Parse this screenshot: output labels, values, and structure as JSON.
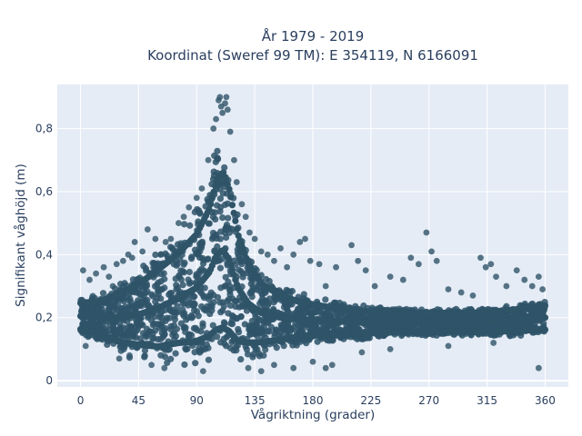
{
  "chart_data": {
    "type": "scatter",
    "title": "År 1979 - 2019",
    "subtitle": "Koordinat (Sweref 99 TM): E 354119, N 6166091",
    "xlabel": "Vågriktning (grader)",
    "ylabel": "Signifikant våghöjd (m)",
    "xlim": [
      -18,
      378
    ],
    "ylim": [
      -0.02,
      0.94
    ],
    "x_ticks": [
      0,
      45,
      90,
      135,
      180,
      225,
      270,
      315,
      360
    ],
    "x_tick_labels": [
      "0",
      "45",
      "90",
      "135",
      "180",
      "225",
      "270",
      "315",
      "360"
    ],
    "y_ticks": [
      0,
      0.2,
      0.4,
      0.6,
      0.8
    ],
    "y_tick_labels": [
      "0",
      "0,2",
      "0,4",
      "0,6",
      "0,8"
    ],
    "grid": true,
    "marker_color": "#2f5468",
    "background_color": "#e5ecf6",
    "band_profile": [
      {
        "x": 0,
        "low": 0.14,
        "high": 0.27
      },
      {
        "x": 15,
        "low": 0.12,
        "high": 0.28
      },
      {
        "x": 30,
        "low": 0.08,
        "high": 0.32
      },
      {
        "x": 45,
        "low": 0.06,
        "high": 0.36
      },
      {
        "x": 60,
        "low": 0.04,
        "high": 0.42
      },
      {
        "x": 75,
        "low": 0.04,
        "high": 0.48
      },
      {
        "x": 90,
        "low": 0.03,
        "high": 0.56
      },
      {
        "x": 100,
        "low": 0.03,
        "high": 0.66
      },
      {
        "x": 105,
        "low": 0.03,
        "high": 0.76
      },
      {
        "x": 110,
        "low": 0.03,
        "high": 0.8
      },
      {
        "x": 115,
        "low": 0.03,
        "high": 0.74
      },
      {
        "x": 122,
        "low": 0.03,
        "high": 0.56
      },
      {
        "x": 130,
        "low": 0.05,
        "high": 0.44
      },
      {
        "x": 140,
        "low": 0.07,
        "high": 0.36
      },
      {
        "x": 155,
        "low": 0.09,
        "high": 0.31
      },
      {
        "x": 170,
        "low": 0.11,
        "high": 0.28
      },
      {
        "x": 190,
        "low": 0.12,
        "high": 0.26
      },
      {
        "x": 220,
        "low": 0.13,
        "high": 0.24
      },
      {
        "x": 260,
        "low": 0.14,
        "high": 0.23
      },
      {
        "x": 300,
        "low": 0.14,
        "high": 0.23
      },
      {
        "x": 330,
        "low": 0.14,
        "high": 0.24
      },
      {
        "x": 360,
        "low": 0.14,
        "high": 0.26
      }
    ],
    "outliers": [
      {
        "x": 2,
        "y": 0.35
      },
      {
        "x": 7,
        "y": 0.32
      },
      {
        "x": 12,
        "y": 0.34
      },
      {
        "x": 18,
        "y": 0.36
      },
      {
        "x": 22,
        "y": 0.33
      },
      {
        "x": 25,
        "y": 0.3
      },
      {
        "x": 28,
        "y": 0.37
      },
      {
        "x": 33,
        "y": 0.38
      },
      {
        "x": 37,
        "y": 0.4
      },
      {
        "x": 40,
        "y": 0.39
      },
      {
        "x": 42,
        "y": 0.44
      },
      {
        "x": 48,
        "y": 0.41
      },
      {
        "x": 52,
        "y": 0.48
      },
      {
        "x": 58,
        "y": 0.45
      },
      {
        "x": 62,
        "y": 0.4
      },
      {
        "x": 66,
        "y": 0.44
      },
      {
        "x": 70,
        "y": 0.45
      },
      {
        "x": 76,
        "y": 0.5
      },
      {
        "x": 80,
        "y": 0.52
      },
      {
        "x": 84,
        "y": 0.55
      },
      {
        "x": 90,
        "y": 0.58
      },
      {
        "x": 94,
        "y": 0.61
      },
      {
        "x": 99,
        "y": 0.7
      },
      {
        "x": 103,
        "y": 0.8
      },
      {
        "x": 105,
        "y": 0.83
      },
      {
        "x": 107,
        "y": 0.89
      },
      {
        "x": 108,
        "y": 0.9
      },
      {
        "x": 109,
        "y": 0.87
      },
      {
        "x": 110,
        "y": 0.85
      },
      {
        "x": 112,
        "y": 0.88
      },
      {
        "x": 113,
        "y": 0.9
      },
      {
        "x": 114,
        "y": 0.86
      },
      {
        "x": 116,
        "y": 0.79
      },
      {
        "x": 119,
        "y": 0.7
      },
      {
        "x": 121,
        "y": 0.63
      },
      {
        "x": 125,
        "y": 0.56
      },
      {
        "x": 128,
        "y": 0.52
      },
      {
        "x": 131,
        "y": 0.47
      },
      {
        "x": 135,
        "y": 0.45
      },
      {
        "x": 140,
        "y": 0.41
      },
      {
        "x": 145,
        "y": 0.4
      },
      {
        "x": 150,
        "y": 0.38
      },
      {
        "x": 155,
        "y": 0.42
      },
      {
        "x": 160,
        "y": 0.36
      },
      {
        "x": 165,
        "y": 0.4
      },
      {
        "x": 170,
        "y": 0.44
      },
      {
        "x": 174,
        "y": 0.45
      },
      {
        "x": 178,
        "y": 0.38
      },
      {
        "x": 185,
        "y": 0.37
      },
      {
        "x": 190,
        "y": 0.3
      },
      {
        "x": 198,
        "y": 0.36
      },
      {
        "x": 210,
        "y": 0.43
      },
      {
        "x": 215,
        "y": 0.38
      },
      {
        "x": 221,
        "y": 0.35
      },
      {
        "x": 228,
        "y": 0.3
      },
      {
        "x": 240,
        "y": 0.33
      },
      {
        "x": 250,
        "y": 0.32
      },
      {
        "x": 256,
        "y": 0.39
      },
      {
        "x": 262,
        "y": 0.37
      },
      {
        "x": 268,
        "y": 0.47
      },
      {
        "x": 272,
        "y": 0.41
      },
      {
        "x": 276,
        "y": 0.38
      },
      {
        "x": 285,
        "y": 0.29
      },
      {
        "x": 295,
        "y": 0.28
      },
      {
        "x": 304,
        "y": 0.27
      },
      {
        "x": 310,
        "y": 0.39
      },
      {
        "x": 314,
        "y": 0.36
      },
      {
        "x": 318,
        "y": 0.37
      },
      {
        "x": 322,
        "y": 0.33
      },
      {
        "x": 330,
        "y": 0.3
      },
      {
        "x": 338,
        "y": 0.35
      },
      {
        "x": 344,
        "y": 0.32
      },
      {
        "x": 350,
        "y": 0.3
      },
      {
        "x": 355,
        "y": 0.33
      },
      {
        "x": 358,
        "y": 0.29
      },
      {
        "x": 4,
        "y": 0.11
      },
      {
        "x": 30,
        "y": 0.07
      },
      {
        "x": 38,
        "y": 0.08
      },
      {
        "x": 55,
        "y": 0.05
      },
      {
        "x": 65,
        "y": 0.04
      },
      {
        "x": 95,
        "y": 0.03
      },
      {
        "x": 130,
        "y": 0.04
      },
      {
        "x": 140,
        "y": 0.03
      },
      {
        "x": 150,
        "y": 0.05
      },
      {
        "x": 165,
        "y": 0.04
      },
      {
        "x": 180,
        "y": 0.06
      },
      {
        "x": 190,
        "y": 0.04
      },
      {
        "x": 195,
        "y": 0.05
      },
      {
        "x": 218,
        "y": 0.09
      },
      {
        "x": 240,
        "y": 0.1
      },
      {
        "x": 285,
        "y": 0.11
      },
      {
        "x": 320,
        "y": 0.12
      },
      {
        "x": 355,
        "y": 0.04
      }
    ]
  }
}
